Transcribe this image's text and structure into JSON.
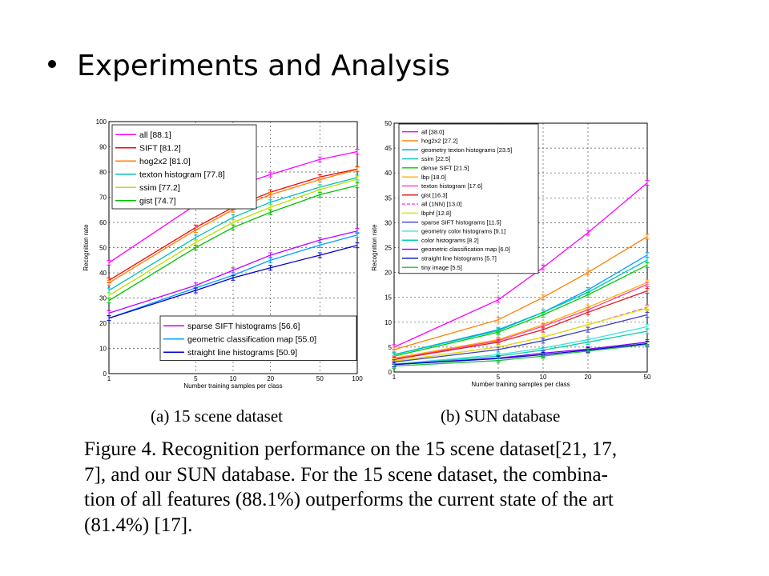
{
  "slide": {
    "title": "Experiments and Analysis",
    "subcaption_a": "(a)  15 scene dataset",
    "subcaption_b": "(b)  SUN database",
    "caption": "Figure 4. Recognition performance on the 15 scene dataset[21, 17,\n7], and our SUN database. For the 15 scene dataset, the combina-\ntion of all features (88.1%) outperforms the current state of the art\n(81.4%) [17]."
  },
  "chart_data": [
    {
      "type": "line",
      "xscale": "log",
      "x": [
        1,
        5,
        10,
        20,
        50,
        100
      ],
      "xticks": [
        "1",
        "5",
        "10",
        "20",
        "50",
        "100"
      ],
      "yticks": [
        "0",
        "10",
        "20",
        "30",
        "40",
        "50",
        "60",
        "70",
        "80",
        "90",
        "100"
      ],
      "ylim": [
        0,
        100
      ],
      "xlabel": "Number training samples per class",
      "ylabel": "Recognition rate",
      "grid": true,
      "legend_placement": "top-left and bottom-right",
      "series": [
        {
          "name": "all [88.1]",
          "color": "#ff00ff",
          "values": [
            44,
            67,
            74,
            79,
            85,
            88.1
          ],
          "legend": 1
        },
        {
          "name": "SIFT [81.2]",
          "color": "#ff0000",
          "values": [
            37,
            58,
            66,
            72,
            78,
            81.2
          ],
          "legend": 1
        },
        {
          "name": "hog2x2 [81.0]",
          "color": "#ff8000",
          "values": [
            36,
            57,
            65,
            71,
            77,
            81.0
          ],
          "legend": 1
        },
        {
          "name": "texton histogram [77.8]",
          "color": "#00c0c0",
          "values": [
            33,
            54,
            62,
            68,
            74,
            77.8
          ],
          "legend": 1
        },
        {
          "name": "ssim [77.2]",
          "color": "#c0e000",
          "values": [
            31,
            52,
            60,
            66,
            73,
            77.2
          ],
          "legend": 1
        },
        {
          "name": "gist [74.7]",
          "color": "#00c000",
          "values": [
            29,
            50,
            58,
            64,
            71,
            74.7
          ],
          "legend": 1
        },
        {
          "name": "sparse SIFT histograms [56.6]",
          "color": "#c000ff",
          "values": [
            24,
            35,
            41,
            47,
            53,
            56.6
          ],
          "legend": 2
        },
        {
          "name": "geometric classification map [55.0]",
          "color": "#00a0ff",
          "values": [
            22,
            34,
            39,
            45,
            51,
            55.0
          ],
          "legend": 2
        },
        {
          "name": "straight line histograms [50.9]",
          "color": "#0000cc",
          "values": [
            22,
            33,
            38,
            42,
            47,
            50.9
          ],
          "legend": 2
        }
      ]
    },
    {
      "type": "line",
      "xscale": "log",
      "x": [
        1,
        5,
        10,
        20,
        50
      ],
      "xticks": [
        "1",
        "5",
        "10",
        "20",
        "50"
      ],
      "yticks": [
        "0",
        "5",
        "10",
        "15",
        "20",
        "25",
        "30",
        "35",
        "40",
        "45",
        "50"
      ],
      "ylim": [
        0,
        50
      ],
      "xlabel": "Number training samples per class",
      "ylabel": "Recognition rate",
      "grid": true,
      "legend_placement": "top-left",
      "series": [
        {
          "name": "all [38.0]",
          "color": "#ff00ff",
          "values": [
            5,
            14.5,
            21,
            28,
            38.0
          ]
        },
        {
          "name": "hog2x2 [27.2]",
          "color": "#ff8000",
          "values": [
            4.5,
            10.5,
            15,
            20,
            27.2
          ]
        },
        {
          "name": "geometry texton histograms [23.5]",
          "color": "#00a0ff",
          "values": [
            3.5,
            8.5,
            12,
            16.5,
            23.5
          ]
        },
        {
          "name": "ssim [22.5]",
          "color": "#00c0c0",
          "values": [
            3.5,
            8.3,
            12,
            16,
            22.5
          ]
        },
        {
          "name": "dense SIFT [21.5]",
          "color": "#00cc00",
          "values": [
            3.2,
            8,
            11.5,
            15.5,
            21.5
          ]
        },
        {
          "name": "lbp [18.0]",
          "color": "#ffb000",
          "values": [
            2.8,
            6.5,
            9.5,
            13,
            18.0
          ]
        },
        {
          "name": "texton histogram [17.6]",
          "color": "#ff40a0",
          "values": [
            2.6,
            6.3,
            9.2,
            12.5,
            17.6
          ]
        },
        {
          "name": "gist [16.3]",
          "color": "#e02020",
          "values": [
            2.5,
            6,
            8.5,
            12,
            16.3
          ]
        },
        {
          "name": "all (1NN) [13.0]",
          "color": "#ff40ff",
          "dashed": true,
          "values": [
            2.2,
            5,
            7,
            9.5,
            13.0
          ]
        },
        {
          "name": "lbphf [12.8]",
          "color": "#e0e000",
          "values": [
            2.2,
            5,
            7,
            9.5,
            12.8
          ]
        },
        {
          "name": "sparse SIFT histograms [11.5]",
          "color": "#4040c0",
          "values": [
            2,
            4.5,
            6.3,
            8.5,
            11.5
          ]
        },
        {
          "name": "geometry color histograms [9.1]",
          "color": "#40e0e0",
          "values": [
            1.6,
            3.5,
            4.8,
            6.5,
            9.1
          ]
        },
        {
          "name": "color histograms [8.2]",
          "color": "#00d0a0",
          "values": [
            1.5,
            3.2,
            4.4,
            6,
            8.2
          ]
        },
        {
          "name": "geometric classification map [6.0]",
          "color": "#8000ff",
          "values": [
            1.5,
            2.8,
            3.8,
            4.6,
            6.0
          ]
        },
        {
          "name": "straight line histograms [5.7]",
          "color": "#0000cc",
          "values": [
            1.5,
            2.7,
            3.5,
            4.4,
            5.7
          ]
        },
        {
          "name": "tiny image [5.5]",
          "color": "#20c040",
          "values": [
            1.2,
            2.3,
            3.2,
            4.2,
            5.5
          ]
        }
      ]
    }
  ]
}
